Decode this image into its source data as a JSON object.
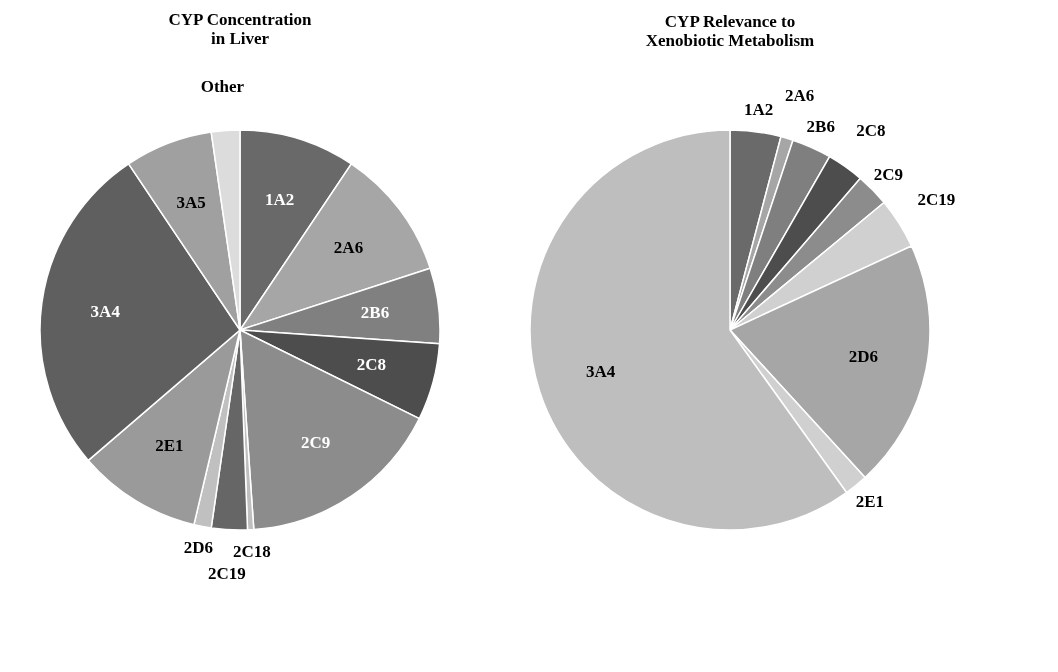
{
  "chart_data": [
    {
      "type": "pie",
      "title": "CYP Concentration in Liver",
      "categories": [
        "1A2",
        "2A6",
        "2B6",
        "2C8",
        "2C9",
        "2C18",
        "2C19",
        "2D6",
        "2E1",
        "3A4",
        "3A5",
        "Other"
      ],
      "values": [
        9.4,
        10.6,
        6.1,
        6.2,
        16.6,
        0.5,
        2.9,
        1.4,
        10.0,
        26.9,
        7.1,
        2.3
      ],
      "colors": [
        "#696969",
        "#a6a6a6",
        "#808080",
        "#4d4d4d",
        "#8c8c8c",
        "#bfbfbf",
        "#666666",
        "#c0c0c0",
        "#9a9a9a",
        "#5f5f5f",
        "#a0a0a0",
        "#dcdcdc"
      ]
    },
    {
      "type": "pie",
      "title": "CYP Relevance to Xenobiotic Metabolism",
      "categories": [
        "1A2",
        "2A6",
        "2B6",
        "2C8",
        "2C9",
        "2C19",
        "2D6",
        "2E1",
        "3A4"
      ],
      "values": [
        4.1,
        1.0,
        3.2,
        3.0,
        2.7,
        4.1,
        20.1,
        1.9,
        59.9
      ],
      "colors": [
        "#6a6a6a",
        "#a6a6a6",
        "#7f7f7f",
        "#4d4d4d",
        "#8c8c8c",
        "#d0d0d0",
        "#a6a6a6",
        "#d0d0d0",
        "#bebebe"
      ]
    }
  ]
}
